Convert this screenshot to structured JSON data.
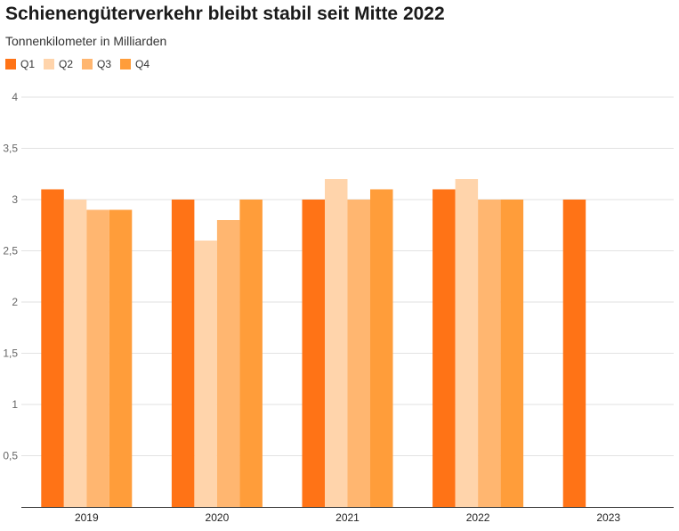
{
  "chart_data": {
    "type": "bar",
    "title": "Schienengüterverkehr bleibt stabil seit Mitte 2022",
    "subtitle": "Tonnenkilometer in Milliarden",
    "categories": [
      "2019",
      "2020",
      "2021",
      "2022",
      "2023"
    ],
    "series": [
      {
        "name": "Q1",
        "color": "#ff7316",
        "values": [
          3.1,
          3.0,
          3.0,
          3.1,
          3.0
        ]
      },
      {
        "name": "Q2",
        "color": "#ffd4ab",
        "values": [
          3.0,
          2.6,
          3.2,
          3.2,
          null
        ]
      },
      {
        "name": "Q3",
        "color": "#ffb670",
        "values": [
          2.9,
          2.8,
          3.0,
          3.0,
          null
        ]
      },
      {
        "name": "Q4",
        "color": "#ff9d3a",
        "values": [
          2.9,
          3.0,
          3.1,
          3.0,
          null
        ]
      }
    ],
    "yticks": [
      "0,5",
      "1",
      "1,5",
      "2",
      "2,5",
      "3",
      "3,5",
      "4"
    ],
    "ylim": [
      0,
      4
    ],
    "grid": true,
    "legend_position": "top-left"
  }
}
